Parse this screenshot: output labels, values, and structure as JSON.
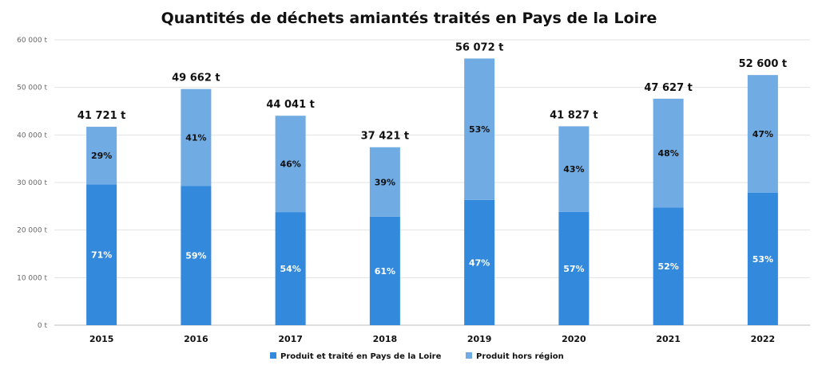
{
  "chart_data": {
    "type": "bar",
    "stacked": true,
    "title": "Quantités de déchets amiantés traités en Pays de la Loire",
    "categories": [
      "2015",
      "2016",
      "2017",
      "2018",
      "2019",
      "2020",
      "2021",
      "2022"
    ],
    "totals": [
      41721,
      49662,
      44041,
      37421,
      56072,
      41827,
      47627,
      52600
    ],
    "total_labels": [
      "41 721 t",
      "49 662 t",
      "44 041 t",
      "37 421 t",
      "56 072 t",
      "41 827 t",
      "47 627 t",
      "52 600 t"
    ],
    "series": [
      {
        "name": "Produit et traité en Pays de la Loire",
        "color": "#3389dc",
        "percent": [
          71,
          59,
          54,
          61,
          47,
          57,
          52,
          53
        ],
        "labels": [
          "71%",
          "59%",
          "54%",
          "61%",
          "47%",
          "57%",
          "52%",
          "53%"
        ]
      },
      {
        "name": "Produit hors région",
        "color": "#70abe3",
        "percent": [
          29,
          41,
          46,
          39,
          53,
          43,
          48,
          47
        ],
        "labels": [
          "29%",
          "41%",
          "46%",
          "39%",
          "53%",
          "43%",
          "48%",
          "47%"
        ]
      }
    ],
    "ylim": [
      0,
      60000
    ],
    "yticks": [
      0,
      10000,
      20000,
      30000,
      40000,
      50000,
      60000
    ],
    "ytick_labels": [
      "0 t",
      "10 000 t",
      "20 000 t",
      "30 000 t",
      "40 000 t",
      "50 000 t",
      "60 000 t"
    ],
    "grid": true,
    "legend": "bottom"
  }
}
